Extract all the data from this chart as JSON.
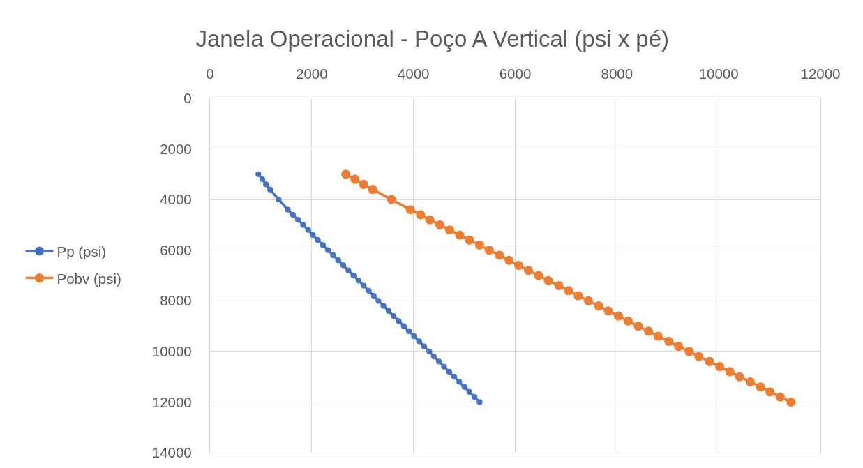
{
  "chart_data": {
    "type": "line",
    "title": "Janela Operacional - Poço A Vertical (psi x pé)",
    "xlim": [
      0,
      12000
    ],
    "xticks": [
      0,
      2000,
      4000,
      6000,
      8000,
      10000,
      12000
    ],
    "ylim": [
      14000,
      0
    ],
    "yticks": [
      0,
      2000,
      4000,
      6000,
      8000,
      10000,
      12000,
      14000
    ],
    "grid": true,
    "legend": "left",
    "marker": "circle",
    "line_style": "solid",
    "series": [
      {
        "name": "Pp (psi)",
        "color": "#4472c4",
        "x": [
          950,
          1030,
          1100,
          1180,
          1350,
          1530,
          1630,
          1730,
          1830,
          1930,
          2020,
          2120,
          2220,
          2320,
          2420,
          2520,
          2620,
          2720,
          2820,
          2920,
          3020,
          3120,
          3220,
          3310,
          3410,
          3510,
          3610,
          3710,
          3810,
          3910,
          4010,
          4110,
          4210,
          4310,
          4400,
          4500,
          4600,
          4700,
          4800,
          4900,
          5000,
          5100,
          5200,
          5300
        ],
        "values": [
          3000,
          3200,
          3400,
          3600,
          4000,
          4400,
          4600,
          4800,
          5000,
          5200,
          5400,
          5600,
          5800,
          6000,
          6200,
          6400,
          6600,
          6800,
          7000,
          7200,
          7400,
          7600,
          7800,
          8000,
          8200,
          8400,
          8600,
          8800,
          9000,
          9200,
          9400,
          9600,
          9800,
          10000,
          10200,
          10400,
          10600,
          10800,
          11000,
          11200,
          11400,
          11600,
          11800,
          12000
        ]
      },
      {
        "name": "Pobv (psi)",
        "color": "#ed7d31",
        "x": [
          2670,
          2850,
          3020,
          3200,
          3570,
          3940,
          4140,
          4320,
          4520,
          4710,
          4910,
          5100,
          5300,
          5490,
          5690,
          5880,
          6070,
          6260,
          6460,
          6650,
          6860,
          7050,
          7240,
          7440,
          7640,
          7830,
          8030,
          8220,
          8420,
          8620,
          8810,
          9020,
          9210,
          9420,
          9610,
          9820,
          10020,
          10220,
          10410,
          10620,
          10820,
          11010,
          11210,
          11420
        ],
        "values": [
          3000,
          3200,
          3400,
          3600,
          4000,
          4400,
          4600,
          4800,
          5000,
          5200,
          5400,
          5600,
          5800,
          6000,
          6200,
          6400,
          6600,
          6800,
          7000,
          7200,
          7400,
          7600,
          7800,
          8000,
          8200,
          8400,
          8600,
          8800,
          9000,
          9200,
          9400,
          9600,
          9800,
          10000,
          10200,
          10400,
          10600,
          10800,
          11000,
          11200,
          11400,
          11600,
          11800,
          12000
        ]
      }
    ]
  }
}
